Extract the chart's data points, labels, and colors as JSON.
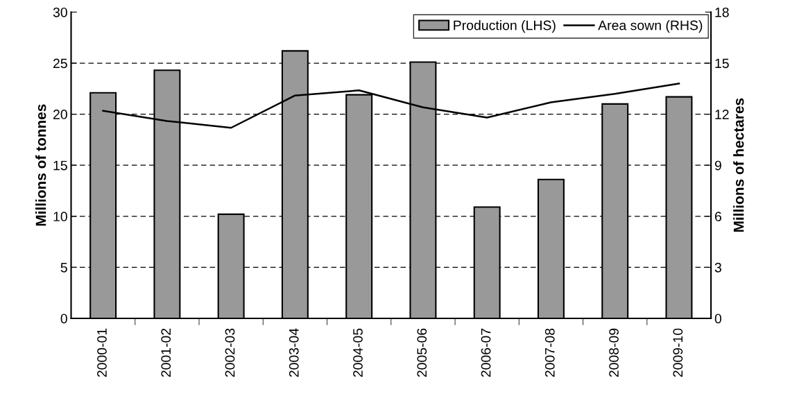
{
  "chart_data": {
    "type": "bar",
    "ylabel": "Millions of tonnes",
    "y2label": "Millions of hectares",
    "categories": [
      "2000-01",
      "2001-02",
      "2002-03",
      "2003-04",
      "2004-05",
      "2005-06",
      "2006-07",
      "2007-08",
      "2008-09",
      "2009-10"
    ],
    "series": [
      {
        "name": "Production (LHS)",
        "color": "#999999",
        "values": [
          22.1,
          24.3,
          10.2,
          26.2,
          21.9,
          25.1,
          10.9,
          13.6,
          21.0,
          21.7
        ]
      },
      {
        "name": "Area sown (RHS)",
        "type": "line",
        "axis": "y2",
        "color": "#000000",
        "values": [
          12.2,
          11.6,
          11.2,
          13.1,
          13.4,
          12.4,
          11.8,
          12.7,
          13.2,
          13.8
        ]
      }
    ],
    "ylim": [
      0,
      30
    ],
    "yticks": [
      0,
      5,
      10,
      15,
      20,
      25,
      30
    ],
    "y2lim": [
      0,
      18
    ],
    "y2ticks": [
      0,
      3,
      6,
      9,
      12,
      15,
      18
    ],
    "grid": "y",
    "legend": "top right",
    "marker": "none",
    "line_style": "solid"
  }
}
